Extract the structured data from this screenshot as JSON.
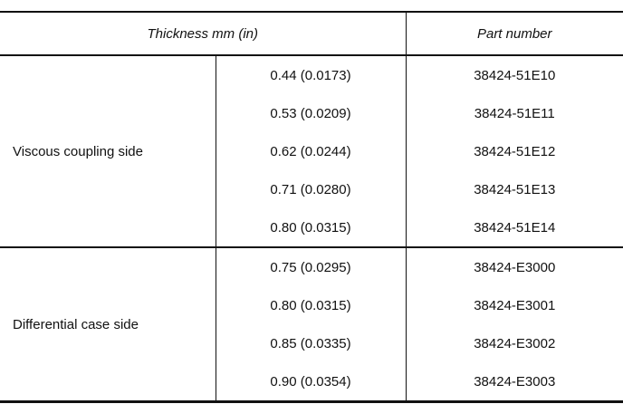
{
  "table": {
    "header": [
      "Thickness mm (in)",
      "Part number"
    ],
    "groups": [
      {
        "label": "Viscous coupling side",
        "rows": [
          [
            "0.44 (0.0173)",
            "38424-51E10"
          ],
          [
            "0.53 (0.0209)",
            "38424-51E11"
          ],
          [
            "0.62 (0.0244)",
            "38424-51E12"
          ],
          [
            "0.71 (0.0280)",
            "38424-51E13"
          ],
          [
            "0.80 (0.0315)",
            "38424-51E14"
          ]
        ]
      },
      {
        "label": "Differential case side",
        "rows": [
          [
            "0.75 (0.0295)",
            "38424-E3000"
          ],
          [
            "0.80 (0.0315)",
            "38424-E3001"
          ],
          [
            "0.85 (0.0335)",
            "38424-E3002"
          ],
          [
            "0.90 (0.0354)",
            "38424-E3003"
          ]
        ]
      }
    ]
  }
}
